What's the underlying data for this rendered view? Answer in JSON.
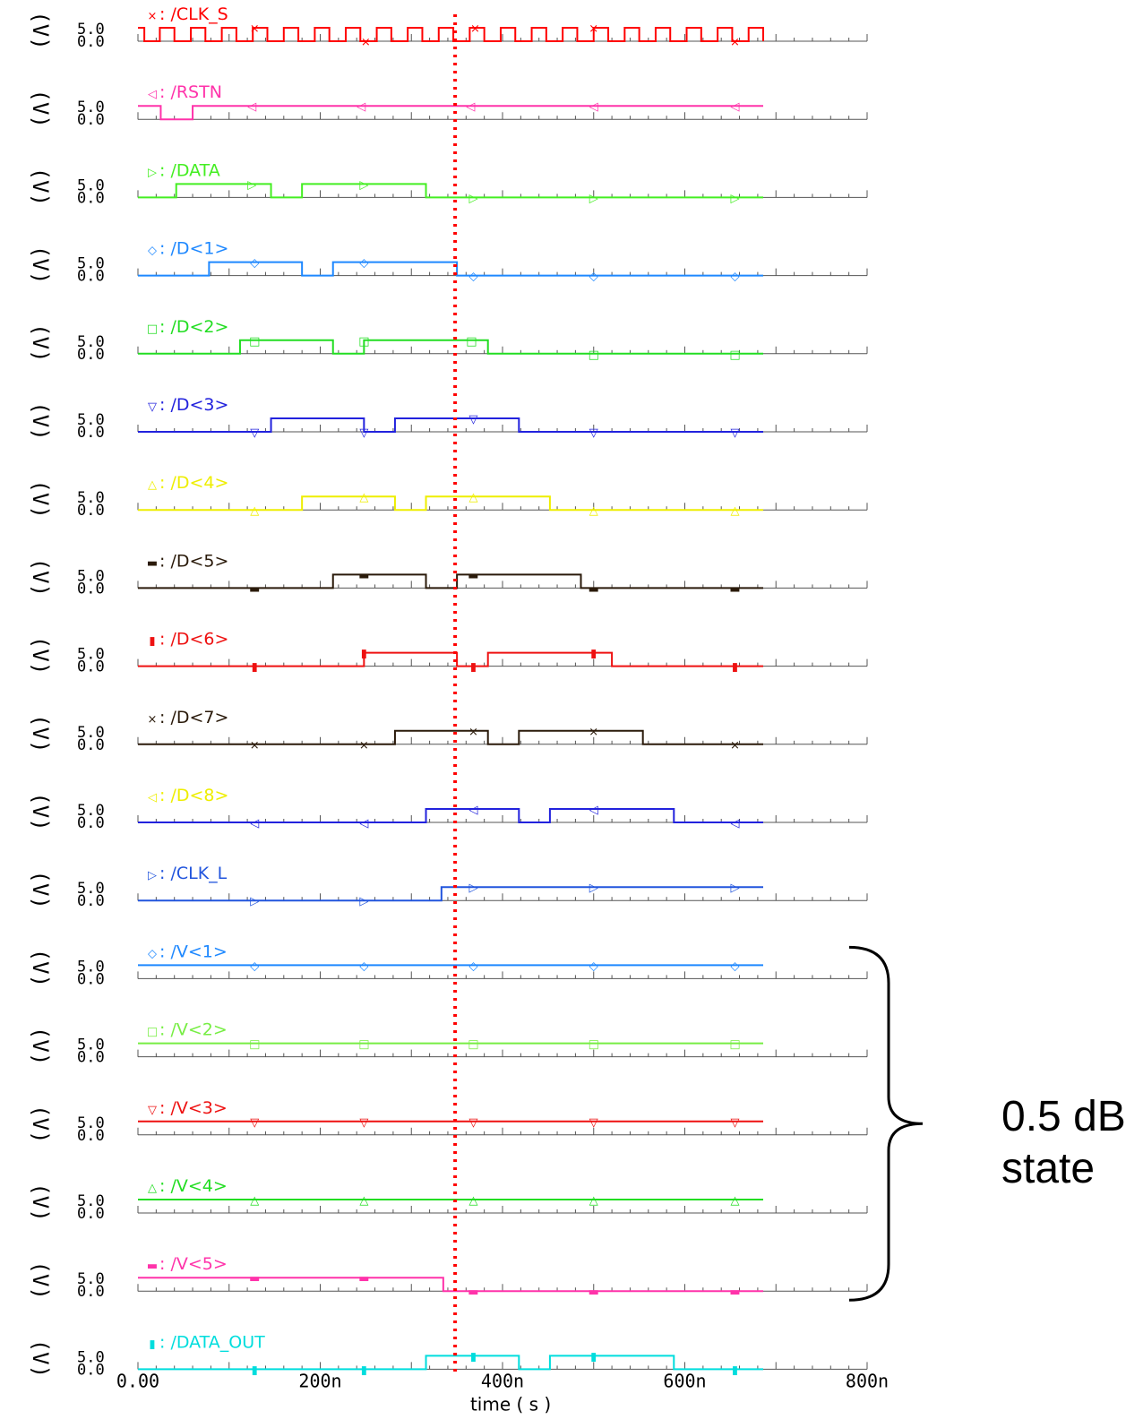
{
  "chart_data": {
    "type": "line",
    "xlabel": "time ( s )",
    "xlim": [
      0,
      800
    ],
    "x_unit": "ns",
    "x_ticks": [
      "0.00",
      "200n",
      "400n",
      "600n",
      "800n"
    ],
    "y_unit_label": "(V)",
    "y_tick_labels": [
      "5.0",
      "0.0"
    ],
    "cursor_x": 348,
    "cursor_color": "#ff0000",
    "annotation": {
      "line1": "0.5 dB",
      "line2": "state"
    },
    "series": [
      {
        "name": "/CLK_S",
        "marker_glyph": "×",
        "color": "#ff0000",
        "steps": [
          [
            0,
            1
          ],
          [
            7,
            0
          ],
          [
            24,
            1
          ],
          [
            40,
            0
          ],
          [
            58,
            1
          ],
          [
            74,
            0
          ],
          [
            92,
            1
          ],
          [
            108,
            0
          ],
          [
            126,
            1
          ],
          [
            142,
            0
          ],
          [
            160,
            1
          ],
          [
            176,
            0
          ],
          [
            194,
            1
          ],
          [
            210,
            0
          ],
          [
            228,
            1
          ],
          [
            244,
            0
          ],
          [
            262,
            1
          ],
          [
            278,
            0
          ],
          [
            296,
            1
          ],
          [
            312,
            0
          ],
          [
            330,
            1
          ],
          [
            346,
            0
          ],
          [
            364,
            1
          ],
          [
            380,
            0
          ],
          [
            398,
            1
          ],
          [
            414,
            0
          ],
          [
            432,
            1
          ],
          [
            448,
            0
          ],
          [
            466,
            1
          ],
          [
            482,
            0
          ],
          [
            500,
            1
          ],
          [
            516,
            0
          ],
          [
            534,
            1
          ],
          [
            550,
            0
          ],
          [
            568,
            1
          ],
          [
            584,
            0
          ],
          [
            602,
            1
          ],
          [
            618,
            0
          ],
          [
            636,
            1
          ],
          [
            652,
            0
          ],
          [
            670,
            1
          ],
          [
            686,
            0
          ]
        ],
        "end": 686,
        "markers": [
          128,
          250,
          370,
          500,
          655
        ]
      },
      {
        "name": "/RSTN",
        "marker_glyph": "◁",
        "color": "#ff33aa",
        "steps": [
          [
            0,
            1
          ],
          [
            25,
            0
          ],
          [
            60,
            1
          ]
        ],
        "end": 686,
        "markers": [
          125,
          245,
          365,
          500,
          655
        ]
      },
      {
        "name": "/DATA",
        "marker_glyph": "▷",
        "color": "#44ee22",
        "steps": [
          [
            0,
            0
          ],
          [
            42,
            1
          ],
          [
            146,
            0
          ],
          [
            180,
            1
          ],
          [
            316,
            0
          ]
        ],
        "end": 686,
        "markers": [
          125,
          248,
          368,
          500,
          655
        ]
      },
      {
        "name": "/D<1>",
        "marker_glyph": "◇",
        "color": "#1e88ff",
        "steps": [
          [
            0,
            0
          ],
          [
            78,
            1
          ],
          [
            180,
            0
          ],
          [
            214,
            1
          ],
          [
            350,
            0
          ]
        ],
        "end": 686,
        "markers": [
          128,
          248,
          368,
          500,
          655
        ]
      },
      {
        "name": "/D<2>",
        "marker_glyph": "□",
        "color": "#22dd22",
        "steps": [
          [
            0,
            0
          ],
          [
            112,
            1
          ],
          [
            214,
            0
          ],
          [
            248,
            1
          ],
          [
            384,
            0
          ]
        ],
        "end": 686,
        "markers": [
          128,
          248,
          366,
          500,
          655
        ]
      },
      {
        "name": "/D<3>",
        "marker_glyph": "▽",
        "color": "#2222dd",
        "steps": [
          [
            0,
            0
          ],
          [
            146,
            1
          ],
          [
            248,
            0
          ],
          [
            282,
            1
          ],
          [
            418,
            0
          ]
        ],
        "end": 686,
        "markers": [
          128,
          248,
          368,
          500,
          655
        ]
      },
      {
        "name": "/D<4>",
        "marker_glyph": "△",
        "color": "#eeee00",
        "steps": [
          [
            0,
            0
          ],
          [
            180,
            1
          ],
          [
            282,
            0
          ],
          [
            316,
            1
          ],
          [
            452,
            0
          ]
        ],
        "end": 686,
        "markers": [
          128,
          248,
          368,
          500,
          655
        ]
      },
      {
        "name": "/D<5>",
        "marker_glyph": "▬",
        "color": "#2a1a0a",
        "steps": [
          [
            0,
            0
          ],
          [
            214,
            1
          ],
          [
            316,
            0
          ],
          [
            350,
            1
          ],
          [
            486,
            0
          ]
        ],
        "end": 686,
        "markers": [
          128,
          248,
          368,
          500,
          655
        ]
      },
      {
        "name": "/D<6>",
        "marker_glyph": "▮",
        "color": "#ee1111",
        "steps": [
          [
            0,
            0
          ],
          [
            248,
            1
          ],
          [
            350,
            0
          ],
          [
            384,
            1
          ],
          [
            520,
            0
          ]
        ],
        "end": 686,
        "markers": [
          128,
          248,
          368,
          500,
          655
        ]
      },
      {
        "name": "/D<7>",
        "marker_glyph": "×",
        "color": "#2a1a0a",
        "steps": [
          [
            0,
            0
          ],
          [
            282,
            1
          ],
          [
            384,
            0
          ],
          [
            418,
            1
          ],
          [
            554,
            0
          ]
        ],
        "end": 686,
        "markers": [
          128,
          248,
          368,
          500,
          655
        ]
      },
      {
        "name": "/D<8>",
        "marker_glyph": "◁",
        "color": "#2222dd",
        "label_color": "#eeee00",
        "steps": [
          [
            0,
            0
          ],
          [
            316,
            1
          ],
          [
            418,
            0
          ],
          [
            452,
            1
          ],
          [
            588,
            0
          ]
        ],
        "end": 686,
        "markers": [
          128,
          248,
          368,
          500,
          655
        ]
      },
      {
        "name": "/CLK_L",
        "marker_glyph": "▷",
        "color": "#2255dd",
        "steps": [
          [
            0,
            0
          ],
          [
            333,
            1
          ]
        ],
        "end": 686,
        "markers": [
          128,
          248,
          368,
          500,
          655
        ]
      },
      {
        "name": "/V<1>",
        "marker_glyph": "◇",
        "color": "#1e88ff",
        "steps": [
          [
            0,
            1
          ]
        ],
        "end": 686,
        "markers": [
          128,
          248,
          368,
          500,
          655
        ]
      },
      {
        "name": "/V<2>",
        "marker_glyph": "□",
        "color": "#77ee44",
        "steps": [
          [
            0,
            1
          ]
        ],
        "end": 686,
        "markers": [
          128,
          248,
          368,
          500,
          655
        ]
      },
      {
        "name": "/V<3>",
        "marker_glyph": "▽",
        "color": "#ee1111",
        "steps": [
          [
            0,
            1
          ]
        ],
        "end": 686,
        "markers": [
          128,
          248,
          368,
          500,
          655
        ]
      },
      {
        "name": "/V<4>",
        "marker_glyph": "△",
        "color": "#22dd22",
        "steps": [
          [
            0,
            1
          ]
        ],
        "end": 686,
        "markers": [
          128,
          248,
          368,
          500,
          655
        ]
      },
      {
        "name": "/V<5>",
        "marker_glyph": "▬",
        "color": "#ff33aa",
        "steps": [
          [
            0,
            1
          ],
          [
            335,
            0
          ]
        ],
        "end": 686,
        "markers": [
          128,
          248,
          368,
          500,
          655
        ]
      },
      {
        "name": "/DATA_OUT",
        "marker_glyph": "▮",
        "color": "#00dddd",
        "steps": [
          [
            0,
            0
          ],
          [
            316,
            1
          ],
          [
            418,
            0
          ],
          [
            452,
            1
          ],
          [
            588,
            0
          ]
        ],
        "end": 686,
        "markers": [
          128,
          248,
          368,
          500,
          655
        ]
      }
    ]
  }
}
